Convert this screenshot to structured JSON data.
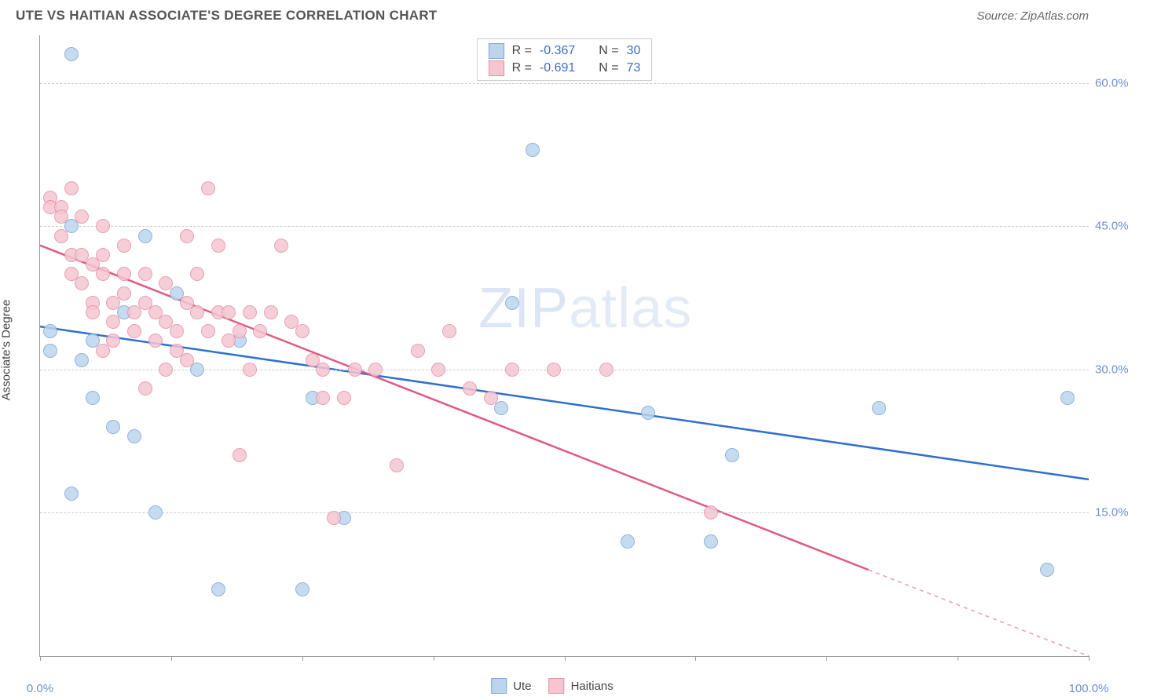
{
  "header": {
    "title": "UTE VS HAITIAN ASSOCIATE'S DEGREE CORRELATION CHART",
    "source": "Source: ZipAtlas.com"
  },
  "watermark": {
    "bold": "ZIP",
    "thin": "atlas"
  },
  "chart": {
    "type": "scatter",
    "ylabel": "Associate's Degree",
    "xlim": [
      0,
      100
    ],
    "ylim": [
      0,
      65
    ],
    "background_color": "#ffffff",
    "grid_color": "#cccccc",
    "axis_color": "#999999",
    "tick_label_color": "#6b8fd4",
    "tick_fontsize": 15,
    "ylabel_fontsize": 15,
    "point_radius": 9,
    "xticks": [
      0,
      12.5,
      25,
      37.5,
      50,
      62.5,
      75,
      87.5,
      100
    ],
    "xtick_labels": {
      "0": "0.0%",
      "100": "100.0%"
    },
    "yticks": [
      15,
      30,
      45,
      60
    ],
    "ytick_labels": {
      "15": "15.0%",
      "30": "30.0%",
      "45": "45.0%",
      "60": "60.0%"
    },
    "series": [
      {
        "name": "Ute",
        "color_fill": "#bcd5ed",
        "color_stroke": "#7fa8d6",
        "swatch_fill": "#bcd5ed",
        "swatch_border": "#7fa8d6",
        "r_value": "-0.367",
        "n_value": "30",
        "trend": {
          "x1": 0,
          "y1": 34.5,
          "x2": 100,
          "y2": 18.5,
          "color": "#2f6fd0",
          "width": 2.5,
          "dash_from_x": 100
        },
        "points": [
          [
            3,
            63
          ],
          [
            3,
            45
          ],
          [
            1,
            34
          ],
          [
            1,
            32
          ],
          [
            4,
            31
          ],
          [
            5,
            27
          ],
          [
            7,
            24
          ],
          [
            9,
            23
          ],
          [
            13,
            38
          ],
          [
            10,
            44
          ],
          [
            15,
            30
          ],
          [
            17,
            7
          ],
          [
            25,
            7
          ],
          [
            26,
            27
          ],
          [
            29,
            14.5
          ],
          [
            47,
            53
          ],
          [
            45,
            37
          ],
          [
            44,
            26
          ],
          [
            58,
            25.5
          ],
          [
            66,
            21
          ],
          [
            56,
            12
          ],
          [
            64,
            12
          ],
          [
            80,
            26
          ],
          [
            98,
            27
          ],
          [
            96,
            9
          ],
          [
            11,
            15
          ],
          [
            3,
            17
          ],
          [
            5,
            33
          ],
          [
            19,
            33
          ],
          [
            8,
            36
          ]
        ]
      },
      {
        "name": "Haitians",
        "color_fill": "#f4c6d2",
        "color_stroke": "#e690a8",
        "swatch_fill": "#f4c6d2",
        "swatch_border": "#e690a8",
        "r_value": "-0.691",
        "n_value": "73",
        "trend": {
          "x1": 0,
          "y1": 43,
          "x2": 100,
          "y2": 0,
          "color": "#e05a82",
          "width": 2.5,
          "dash_from_x": 79
        },
        "points": [
          [
            1,
            48
          ],
          [
            1,
            47
          ],
          [
            2,
            47
          ],
          [
            2,
            46
          ],
          [
            2,
            44
          ],
          [
            3,
            49
          ],
          [
            3,
            42
          ],
          [
            3,
            40
          ],
          [
            4,
            42
          ],
          [
            4,
            39
          ],
          [
            4,
            46
          ],
          [
            5,
            41
          ],
          [
            5,
            37
          ],
          [
            5,
            36
          ],
          [
            6,
            45
          ],
          [
            6,
            42
          ],
          [
            6,
            40
          ],
          [
            7,
            37
          ],
          [
            7,
            35
          ],
          [
            7,
            33
          ],
          [
            8,
            43
          ],
          [
            8,
            40
          ],
          [
            8,
            38
          ],
          [
            9,
            36
          ],
          [
            9,
            34
          ],
          [
            10,
            40
          ],
          [
            10,
            37
          ],
          [
            11,
            36
          ],
          [
            11,
            33
          ],
          [
            12,
            39
          ],
          [
            12,
            35
          ],
          [
            13,
            34
          ],
          [
            13,
            32
          ],
          [
            14,
            44
          ],
          [
            14,
            37
          ],
          [
            15,
            36
          ],
          [
            15,
            40
          ],
          [
            16,
            49
          ],
          [
            16,
            34
          ],
          [
            17,
            43
          ],
          [
            17,
            36
          ],
          [
            18,
            36
          ],
          [
            18,
            33
          ],
          [
            19,
            34
          ],
          [
            19,
            21
          ],
          [
            20,
            36
          ],
          [
            20,
            30
          ],
          [
            21,
            34
          ],
          [
            22,
            36
          ],
          [
            23,
            43
          ],
          [
            24,
            35
          ],
          [
            25,
            34
          ],
          [
            26,
            31
          ],
          [
            27,
            30
          ],
          [
            27,
            27
          ],
          [
            28,
            14.5
          ],
          [
            29,
            27
          ],
          [
            30,
            30
          ],
          [
            32,
            30
          ],
          [
            34,
            20
          ],
          [
            36,
            32
          ],
          [
            38,
            30
          ],
          [
            39,
            34
          ],
          [
            41,
            28
          ],
          [
            43,
            27
          ],
          [
            45,
            30
          ],
          [
            49,
            30
          ],
          [
            54,
            30
          ],
          [
            64,
            15
          ],
          [
            10,
            28
          ],
          [
            12,
            30
          ],
          [
            6,
            32
          ],
          [
            14,
            31
          ]
        ]
      }
    ],
    "legend_top": {
      "r_label": "R =",
      "n_label": "N ="
    },
    "legend_bottom_labels": [
      "Ute",
      "Haitians"
    ]
  }
}
